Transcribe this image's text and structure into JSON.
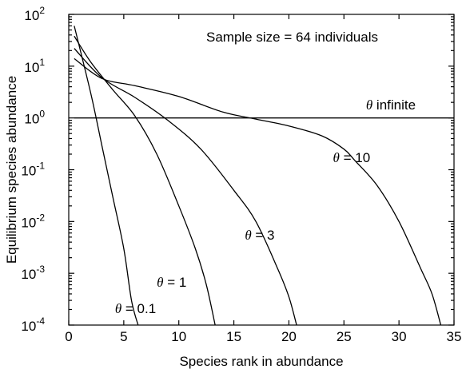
{
  "chart_data": {
    "type": "line",
    "title": "",
    "annotation": "Sample size = 64 individuals",
    "xlabel": "Species rank in abundance",
    "ylabel": "Equilibrium species abundance",
    "xlim": [
      0,
      35
    ],
    "ylim": [
      0.0001,
      100
    ],
    "yscale": "log",
    "grid": false,
    "x_ticks": [
      "0",
      "5",
      "10",
      "15",
      "20",
      "25",
      "30",
      "35"
    ],
    "y_ticks": [
      {
        "base": "10",
        "exp": "-4"
      },
      {
        "base": "10",
        "exp": "-3"
      },
      {
        "base": "10",
        "exp": "-2"
      },
      {
        "base": "10",
        "exp": "-1"
      },
      {
        "base": "10",
        "exp": "0"
      },
      {
        "base": "10",
        "exp": "1"
      },
      {
        "base": "10",
        "exp": "2"
      }
    ],
    "series": [
      {
        "name": "θ = 0.1",
        "label_symbol": "θ",
        "label_rest": " = 0.1",
        "points": [
          [
            0.5,
            60
          ],
          [
            2,
            3
          ],
          [
            3,
            0.3
          ],
          [
            4,
            0.03
          ],
          [
            5,
            0.003
          ],
          [
            5.7,
            0.0003
          ],
          [
            6.3,
            0.0001
          ]
        ]
      },
      {
        "name": "θ = 1",
        "label_symbol": "θ",
        "label_rest": " = 1",
        "points": [
          [
            0.5,
            38
          ],
          [
            2,
            12
          ],
          [
            4,
            3.5
          ],
          [
            6,
            1.1
          ],
          [
            8,
            0.2
          ],
          [
            10,
            0.02
          ],
          [
            11.5,
            0.003
          ],
          [
            12.5,
            0.0006
          ],
          [
            13.3,
            0.0001
          ]
        ]
      },
      {
        "name": "θ = 3",
        "label_symbol": "θ",
        "label_rest": " = 3",
        "points": [
          [
            0.5,
            22
          ],
          [
            3,
            6
          ],
          [
            6,
            2.5
          ],
          [
            9,
            0.9
          ],
          [
            12,
            0.25
          ],
          [
            15,
            0.04
          ],
          [
            17,
            0.01
          ],
          [
            19,
            0.0012
          ],
          [
            20,
            0.00035
          ],
          [
            20.7,
            0.0001
          ]
        ]
      },
      {
        "name": "θ = 10",
        "label_symbol": "θ",
        "label_rest": " = 10",
        "points": [
          [
            0.5,
            14
          ],
          [
            3,
            5.8
          ],
          [
            6,
            4.2
          ],
          [
            10,
            2.6
          ],
          [
            14,
            1.3
          ],
          [
            17,
            0.95
          ],
          [
            20,
            0.7
          ],
          [
            23,
            0.45
          ],
          [
            25,
            0.25
          ],
          [
            26,
            0.15
          ],
          [
            28,
            0.05
          ],
          [
            30,
            0.01
          ],
          [
            32,
            0.0012
          ],
          [
            33,
            0.0004
          ],
          [
            33.8,
            0.0001
          ]
        ]
      },
      {
        "name": "θ infinite",
        "label_symbol": "θ",
        "label_rest": " infinite",
        "points": [
          [
            0.5,
            1
          ],
          [
            35,
            1
          ]
        ]
      }
    ],
    "series_label_positions": [
      {
        "x": 4.2,
        "y": 0.00017,
        "anchor": "start"
      },
      {
        "x": 8.0,
        "y": 0.00055,
        "anchor": "start"
      },
      {
        "x": 16.0,
        "y": 0.0045,
        "anchor": "start"
      },
      {
        "x": 24.0,
        "y": 0.14,
        "anchor": "start"
      },
      {
        "x": 27.0,
        "y": 1.45,
        "anchor": "start"
      }
    ]
  }
}
